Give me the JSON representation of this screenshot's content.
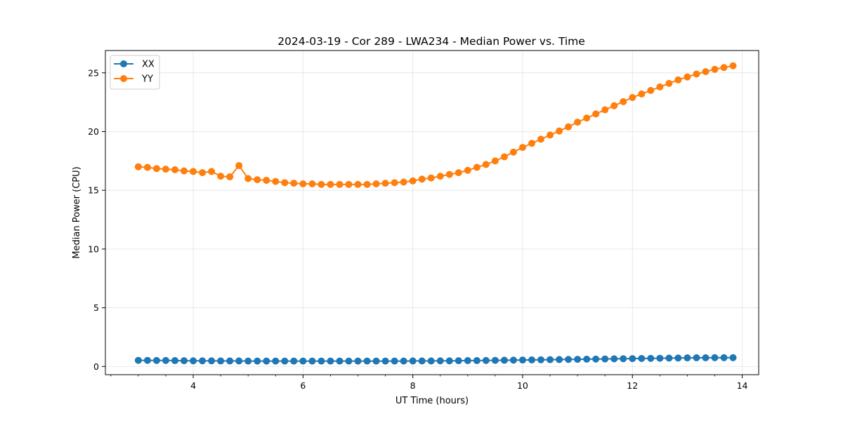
{
  "chart_data": {
    "type": "line",
    "title": "2024-03-19 - Cor 289 - LWA234 - Median Power vs. Time",
    "xlabel": "UT Time (hours)",
    "ylabel": "Median Power (CPU)",
    "xlim": [
      2.4,
      14.3
    ],
    "ylim": [
      -0.7,
      26.9
    ],
    "xticks": [
      4,
      6,
      8,
      10,
      12,
      14
    ],
    "xminor_step": 0.5,
    "yticks": [
      0,
      5,
      10,
      15,
      20,
      25
    ],
    "grid": true,
    "legend_position": "top-left",
    "x": [
      3.0,
      3.167,
      3.333,
      3.5,
      3.667,
      3.833,
      4.0,
      4.167,
      4.333,
      4.5,
      4.667,
      4.833,
      5.0,
      5.167,
      5.333,
      5.5,
      5.667,
      5.833,
      6.0,
      6.167,
      6.333,
      6.5,
      6.667,
      6.833,
      7.0,
      7.167,
      7.333,
      7.5,
      7.667,
      7.833,
      8.0,
      8.167,
      8.333,
      8.5,
      8.667,
      8.833,
      9.0,
      9.167,
      9.333,
      9.5,
      9.667,
      9.833,
      10.0,
      10.167,
      10.333,
      10.5,
      10.667,
      10.833,
      11.0,
      11.167,
      11.333,
      11.5,
      11.667,
      11.833,
      12.0,
      12.167,
      12.333,
      12.5,
      12.667,
      12.833,
      13.0,
      13.167,
      13.333,
      13.5,
      13.667,
      13.833
    ],
    "series": [
      {
        "name": "XX",
        "color": "#1f77b4",
        "values": [
          0.52,
          0.52,
          0.51,
          0.51,
          0.5,
          0.49,
          0.48,
          0.48,
          0.48,
          0.47,
          0.47,
          0.47,
          0.46,
          0.46,
          0.46,
          0.46,
          0.46,
          0.46,
          0.46,
          0.46,
          0.46,
          0.46,
          0.46,
          0.46,
          0.46,
          0.46,
          0.46,
          0.46,
          0.46,
          0.46,
          0.47,
          0.47,
          0.47,
          0.48,
          0.48,
          0.49,
          0.5,
          0.5,
          0.51,
          0.52,
          0.53,
          0.54,
          0.55,
          0.56,
          0.57,
          0.58,
          0.59,
          0.6,
          0.61,
          0.62,
          0.63,
          0.64,
          0.65,
          0.66,
          0.67,
          0.68,
          0.69,
          0.7,
          0.71,
          0.72,
          0.73,
          0.74,
          0.74,
          0.75,
          0.75,
          0.75
        ]
      },
      {
        "name": "YY",
        "color": "#ff7f0e",
        "values": [
          17.0,
          16.95,
          16.85,
          16.8,
          16.75,
          16.65,
          16.6,
          16.5,
          16.6,
          16.2,
          16.15,
          17.1,
          16.0,
          15.9,
          15.85,
          15.75,
          15.65,
          15.6,
          15.55,
          15.55,
          15.5,
          15.5,
          15.5,
          15.5,
          15.5,
          15.5,
          15.55,
          15.6,
          15.65,
          15.7,
          15.8,
          15.95,
          16.05,
          16.2,
          16.35,
          16.5,
          16.7,
          16.95,
          17.2,
          17.5,
          17.85,
          18.25,
          18.65,
          19.0,
          19.35,
          19.7,
          20.05,
          20.4,
          20.8,
          21.15,
          21.5,
          21.85,
          22.2,
          22.55,
          22.9,
          23.2,
          23.5,
          23.8,
          24.1,
          24.4,
          24.65,
          24.9,
          25.1,
          25.3,
          25.45,
          25.6
        ]
      }
    ]
  }
}
